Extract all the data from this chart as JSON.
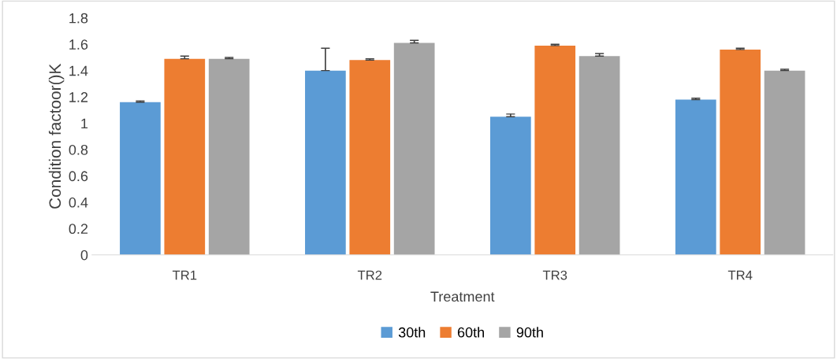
{
  "chart_data": {
    "type": "bar",
    "xlabel": "Treatment",
    "ylabel": "Condition factoor()K",
    "categories": [
      "TR1",
      "TR2",
      "TR3",
      "TR4"
    ],
    "series": [
      {
        "name": "30th",
        "color": "#5b9bd5",
        "values": [
          1.16,
          1.4,
          1.05,
          1.18
        ],
        "errors": [
          0.01,
          0.17,
          0.02,
          0.01
        ]
      },
      {
        "name": "60th",
        "color": "#ed7d31",
        "values": [
          1.49,
          1.48,
          1.59,
          1.56
        ],
        "errors": [
          0.02,
          0.01,
          0.01,
          0.01
        ]
      },
      {
        "name": "90th",
        "color": "#a5a5a5",
        "values": [
          1.49,
          1.61,
          1.51,
          1.4
        ],
        "errors": [
          0.01,
          0.02,
          0.02,
          0.01
        ]
      }
    ],
    "ylim": [
      0,
      1.8
    ],
    "yticks": [
      0,
      {
        "value": 0.2,
        "label": "0.2"
      },
      {
        "value": 0.4,
        "label": "0.4"
      },
      {
        "value": 0.6,
        "label": "0.6"
      },
      {
        "value": 0.8,
        "label": "0.8"
      },
      1,
      {
        "value": 1.2,
        "label": "1.2"
      },
      {
        "value": 1.4,
        "label": "1.4"
      },
      {
        "value": 1.6,
        "label": "1.6"
      },
      {
        "value": 1.8,
        "label": "1.8"
      }
    ],
    "grid": false,
    "legend": "bottom"
  }
}
